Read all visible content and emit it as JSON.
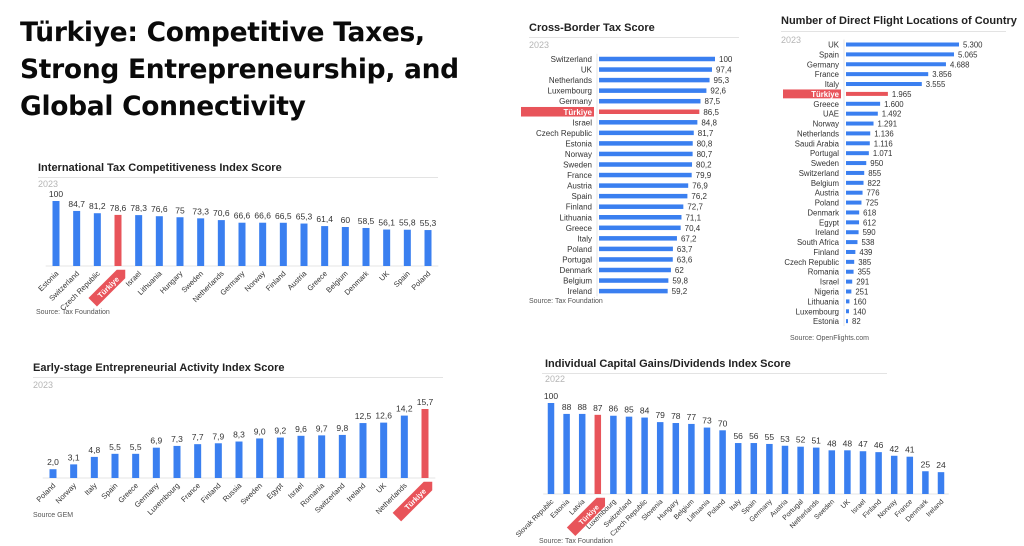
{
  "page": {
    "title": "Türkiye: Competitive Taxes, Strong Entrepreneurship, and Global Connectivity",
    "title_lines": [
      "Türkiye: Competitive Taxes,",
      "Strong Entrepreneurship, and",
      "Global Connectivity"
    ]
  },
  "colors": {
    "bar": "#3a7ff0",
    "highlight": "#e8545a",
    "text": "#333333"
  },
  "chart_data": [
    {
      "id": "tax-competitiveness",
      "type": "bar",
      "orientation": "vertical",
      "title": "International Tax Competitiveness Index Score",
      "subtitle": "2023",
      "source": "Source: Tax Foundation",
      "categories": [
        "Estonia",
        "Switzerland",
        "Czech Republic",
        "Türkiye",
        "Israel",
        "Lithuania",
        "Hungary",
        "Sweden",
        "Netherlands",
        "Germany",
        "Norway",
        "Finland",
        "Austria",
        "Greece",
        "Belgium",
        "Denmark",
        "UK",
        "Spain",
        "Poland"
      ],
      "values": [
        100,
        84.7,
        81.2,
        78.6,
        78.3,
        76.6,
        75,
        73.3,
        70.6,
        66.6,
        66.6,
        66.5,
        65.3,
        61.4,
        60,
        58.5,
        56.1,
        55.8,
        55.3
      ],
      "labels": [
        "100",
        "84,7",
        "81,2",
        "78,6",
        "78,3",
        "76,6",
        "75",
        "73,3",
        "70,6",
        "66,6",
        "66,6",
        "66,5",
        "65,3",
        "61,4",
        "60",
        "58,5",
        "56,1",
        "55,8",
        "55,3"
      ],
      "highlight": "Türkiye",
      "ylim": [
        0,
        100
      ]
    },
    {
      "id": "entrepreneurial-activity",
      "type": "bar",
      "orientation": "vertical",
      "title": "Early-stage Entrepreneurial Activity Index Score",
      "subtitle": "2023",
      "source": "Source GEM",
      "categories": [
        "Poland",
        "Norway",
        "Italy",
        "Spain",
        "Greece",
        "Germany",
        "Luxembourg",
        "France",
        "Finland",
        "Russia",
        "Sweden",
        "Egypt",
        "Israel",
        "Romania",
        "Switzerland",
        "Ireland",
        "UK",
        "Netherlands",
        "Türkiye"
      ],
      "values": [
        2.0,
        3.1,
        4.8,
        5.5,
        5.5,
        6.9,
        7.3,
        7.7,
        7.9,
        8.3,
        9.0,
        9.2,
        9.6,
        9.7,
        9.8,
        12.5,
        12.6,
        14.2,
        15.7
      ],
      "labels": [
        "2,0",
        "3,1",
        "4,8",
        "5,5",
        "5,5",
        "6,9",
        "7,3",
        "7,7",
        "7,9",
        "8,3",
        "9,0",
        "9,2",
        "9,6",
        "9,7",
        "9,8",
        "12,5",
        "12,6",
        "14,2",
        "15,7"
      ],
      "highlight": "Türkiye",
      "ylim": [
        0,
        15.7
      ]
    },
    {
      "id": "cross-border-tax",
      "type": "bar",
      "orientation": "horizontal",
      "title": "Cross-Border Tax Score",
      "subtitle": "2023",
      "source": "Source: Tax Foundation",
      "categories": [
        "Switzerland",
        "UK",
        "Netherlands",
        "Luxembourg",
        "Germany",
        "Türkiye",
        "Israel",
        "Czech Republic",
        "Estonia",
        "Norway",
        "Sweden",
        "France",
        "Austria",
        "Spain",
        "Finland",
        "Lithuania",
        "Greece",
        "Italy",
        "Poland",
        "Portugal",
        "Denmark",
        "Belgium",
        "Ireland"
      ],
      "values": [
        100,
        97.4,
        95.3,
        92.6,
        87.5,
        86.5,
        84.8,
        81.7,
        80.8,
        80.7,
        80.2,
        79.9,
        76.9,
        76.2,
        72.7,
        71.1,
        70.4,
        67.2,
        63.7,
        63.6,
        62,
        59.8,
        59.2
      ],
      "labels": [
        "100",
        "97,4",
        "95,3",
        "92,6",
        "87,5",
        "86,5",
        "84,8",
        "81,7",
        "80,8",
        "80,7",
        "80,2",
        "79,9",
        "76,9",
        "76,2",
        "72,7",
        "71,1",
        "70,4",
        "67,2",
        "63,7",
        "63,6",
        "62",
        "59,8",
        "59,2"
      ],
      "highlight": "Türkiye",
      "xlim": [
        0,
        100
      ]
    },
    {
      "id": "direct-flights",
      "type": "bar",
      "orientation": "horizontal",
      "title": "Number of Direct Flight Locations of Country",
      "subtitle": "2023",
      "source": "Source: OpenFlights.com",
      "categories": [
        "UK",
        "Spain",
        "Germany",
        "France",
        "Italy",
        "Türkiye",
        "Greece",
        "UAE",
        "Norway",
        "Netherlands",
        "Saudi Arabia",
        "Portugal",
        "Sweden",
        "Switzerland",
        "Belgium",
        "Austria",
        "Poland",
        "Denmark",
        "Egypt",
        "Ireland",
        "South Africa",
        "Finland",
        "Czech Republic",
        "Romania",
        "Israel",
        "Nigeria",
        "Lithuania",
        "Luxembourg",
        "Estonia"
      ],
      "values": [
        5300,
        5065,
        4688,
        3856,
        3555,
        1965,
        1600,
        1492,
        1291,
        1136,
        1116,
        1071,
        950,
        855,
        822,
        776,
        725,
        618,
        612,
        590,
        538,
        439,
        385,
        355,
        291,
        251,
        160,
        140,
        82
      ],
      "labels": [
        "5.300",
        "5.065",
        "4.688",
        "3.856",
        "3.555",
        "1.965",
        "1.600",
        "1.492",
        "1.291",
        "1.136",
        "1.116",
        "1.071",
        "950",
        "855",
        "822",
        "776",
        "725",
        "618",
        "612",
        "590",
        "538",
        "439",
        "385",
        "355",
        "291",
        "251",
        "160",
        "140",
        "82"
      ],
      "highlight": "Türkiye",
      "xlim": [
        0,
        5300
      ]
    },
    {
      "id": "capital-gains",
      "type": "bar",
      "orientation": "vertical",
      "title": "Individual Capital Gains/Dividends Index Score",
      "subtitle": "2022",
      "source": "Source: Tax Foundation",
      "categories": [
        "Slovak Republic",
        "Estonia",
        "Latvia",
        "Türkiye",
        "Luxembourg",
        "Switzerland",
        "Czech Republic",
        "Slovenia",
        "Hungary",
        "Belgium",
        "Lithuania",
        "Poland",
        "Italy",
        "Spain",
        "Germany",
        "Austria",
        "Portugal",
        "Netherlands",
        "Sweden",
        "UK",
        "Israel",
        "Finland",
        "Norway",
        "France",
        "Denmark",
        "Ireland"
      ],
      "values": [
        100,
        88,
        88,
        87,
        86,
        85,
        84,
        79,
        78,
        77,
        73,
        70,
        56,
        56,
        55,
        53,
        52,
        51,
        48,
        48,
        47,
        46,
        42,
        41,
        25,
        24
      ],
      "labels": [
        "100",
        "88",
        "88",
        "87",
        "86",
        "85",
        "84",
        "79",
        "78",
        "77",
        "73",
        "70",
        "56",
        "56",
        "55",
        "53",
        "52",
        "51",
        "48",
        "48",
        "47",
        "46",
        "42",
        "41",
        "25",
        "24"
      ],
      "highlight": "Türkiye",
      "ylim": [
        0,
        100
      ]
    }
  ]
}
